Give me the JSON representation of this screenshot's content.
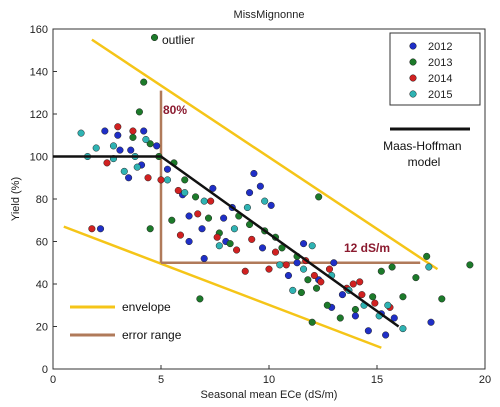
{
  "chart_data": {
    "type": "scatter",
    "title": "MissMignonne",
    "xlabel": "Seasonal mean ECe (dS/m)",
    "ylabel": "Yield (%)",
    "xlim": [
      0,
      20
    ],
    "ylim": [
      0,
      160
    ],
    "xticks": [
      "0",
      "5",
      "10",
      "15",
      "20"
    ],
    "yticks": [
      "0",
      "20",
      "40",
      "60",
      "80",
      "100",
      "120",
      "140",
      "160"
    ],
    "grid": false,
    "legend_position": "top-right",
    "series": [
      {
        "name": "2012",
        "color": "#1f2fc7",
        "points": [
          [
            2.4,
            112
          ],
          [
            3.0,
            110
          ],
          [
            3.1,
            103
          ],
          [
            3.6,
            103
          ],
          [
            4.2,
            112
          ],
          [
            4.8,
            105
          ],
          [
            5.3,
            94
          ],
          [
            6.0,
            82
          ],
          [
            6.3,
            72
          ],
          [
            6.9,
            66
          ],
          [
            7.4,
            85
          ],
          [
            7.9,
            71
          ],
          [
            8.3,
            76
          ],
          [
            9.1,
            83
          ],
          [
            9.6,
            86
          ],
          [
            10.1,
            77
          ],
          [
            9.3,
            92
          ],
          [
            8.0,
            60
          ],
          [
            7.0,
            52
          ],
          [
            6.3,
            60
          ],
          [
            9.7,
            57
          ],
          [
            10.9,
            44
          ],
          [
            11.6,
            59
          ],
          [
            12.3,
            42
          ],
          [
            13.0,
            50
          ],
          [
            12.9,
            29
          ],
          [
            13.4,
            35
          ],
          [
            14.0,
            25
          ],
          [
            14.6,
            18
          ],
          [
            15.2,
            26
          ],
          [
            15.4,
            16
          ],
          [
            15.8,
            24
          ],
          [
            3.5,
            90
          ],
          [
            4.1,
            96
          ],
          [
            2.2,
            66
          ],
          [
            17.5,
            22
          ],
          [
            11.3,
            50
          ]
        ]
      },
      {
        "name": "2013",
        "color": "#1c7a2a",
        "points": [
          [
            4.7,
            156
          ],
          [
            4.2,
            135
          ],
          [
            4.0,
            121
          ],
          [
            3.7,
            109
          ],
          [
            4.5,
            106
          ],
          [
            4.9,
            100
          ],
          [
            5.6,
            97
          ],
          [
            6.1,
            89
          ],
          [
            6.6,
            81
          ],
          [
            7.2,
            71
          ],
          [
            7.7,
            64
          ],
          [
            8.2,
            59
          ],
          [
            8.6,
            72
          ],
          [
            9.1,
            68
          ],
          [
            9.8,
            65
          ],
          [
            10.3,
            62
          ],
          [
            10.6,
            57
          ],
          [
            11.3,
            53
          ],
          [
            11.8,
            42
          ],
          [
            12.2,
            38
          ],
          [
            12.7,
            30
          ],
          [
            13.3,
            24
          ],
          [
            14.0,
            28
          ],
          [
            14.8,
            34
          ],
          [
            15.2,
            46
          ],
          [
            15.7,
            48
          ],
          [
            16.2,
            34
          ],
          [
            16.8,
            43
          ],
          [
            17.3,
            53
          ],
          [
            18.0,
            33
          ],
          [
            19.3,
            49
          ],
          [
            12.0,
            22
          ],
          [
            4.5,
            66
          ],
          [
            5.5,
            70
          ],
          [
            6.8,
            33
          ],
          [
            11.5,
            36
          ],
          [
            12.3,
            81
          ]
        ]
      },
      {
        "name": "2014",
        "color": "#d12121",
        "points": [
          [
            1.8,
            66
          ],
          [
            2.5,
            97
          ],
          [
            3.0,
            114
          ],
          [
            3.7,
            112
          ],
          [
            4.4,
            90
          ],
          [
            5.0,
            89
          ],
          [
            5.8,
            84
          ],
          [
            6.7,
            73
          ],
          [
            7.6,
            62
          ],
          [
            8.5,
            56
          ],
          [
            9.2,
            61
          ],
          [
            10.3,
            55
          ],
          [
            10.8,
            49
          ],
          [
            11.7,
            51
          ],
          [
            12.4,
            41
          ],
          [
            12.8,
            47
          ],
          [
            13.6,
            38
          ],
          [
            14.3,
            35
          ],
          [
            14.9,
            31
          ],
          [
            15.6,
            29
          ],
          [
            5.9,
            63
          ],
          [
            7.3,
            79
          ],
          [
            8.9,
            46
          ],
          [
            10.0,
            47
          ],
          [
            12.1,
            44
          ],
          [
            13.9,
            40
          ],
          [
            14.2,
            41
          ]
        ]
      },
      {
        "name": "2015",
        "color": "#2fb3b3",
        "points": [
          [
            1.3,
            111
          ],
          [
            1.6,
            100
          ],
          [
            2.0,
            104
          ],
          [
            2.8,
            99
          ],
          [
            3.3,
            93
          ],
          [
            3.9,
            95
          ],
          [
            4.3,
            108
          ],
          [
            5.3,
            89
          ],
          [
            6.1,
            83
          ],
          [
            7.0,
            79
          ],
          [
            7.7,
            58
          ],
          [
            8.4,
            66
          ],
          [
            9.0,
            76
          ],
          [
            9.8,
            79
          ],
          [
            10.5,
            49
          ],
          [
            11.1,
            37
          ],
          [
            11.6,
            47
          ],
          [
            12.0,
            58
          ],
          [
            12.9,
            44
          ],
          [
            13.7,
            37
          ],
          [
            14.4,
            30
          ],
          [
            15.1,
            25
          ],
          [
            15.5,
            30
          ],
          [
            16.2,
            19
          ],
          [
            17.4,
            48
          ],
          [
            2.8,
            105
          ],
          [
            3.8,
            100
          ]
        ]
      }
    ],
    "model_line": {
      "name": "Maas-Hoffman model",
      "color": "#111111",
      "threshold": 5.0,
      "points": [
        [
          0,
          100
        ],
        [
          5.0,
          100
        ],
        [
          16.0,
          20
        ]
      ]
    },
    "envelope": {
      "name": "envelope",
      "color": "#f5c518",
      "upper": [
        [
          1.8,
          155
        ],
        [
          17.8,
          47
        ]
      ],
      "lower": [
        [
          0.5,
          67
        ],
        [
          15.2,
          10
        ]
      ]
    },
    "error_range": {
      "name": "error range",
      "color": "#b07a5a",
      "vertical": [
        [
          5.0,
          131
        ],
        [
          5.0,
          50
        ]
      ],
      "horizontal": [
        [
          5.0,
          50
        ],
        [
          17.0,
          50
        ]
      ],
      "vertical_label": "80%",
      "horizontal_label": "12 dS/m"
    },
    "annotations": [
      {
        "text": "outlier",
        "x": 5.3,
        "y": 156
      }
    ]
  }
}
